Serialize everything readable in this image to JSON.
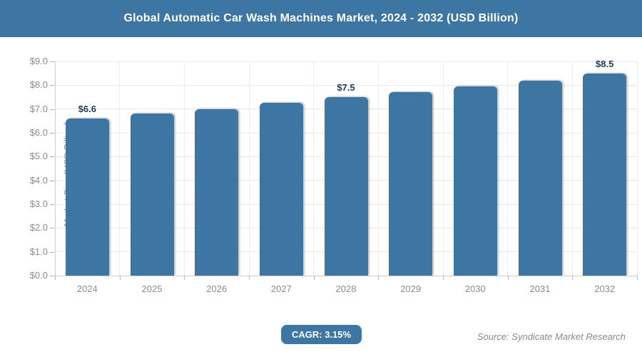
{
  "header": {
    "title": "Global Automatic Car Wash Machines Market, 2024 - 2032 (USD Billion)"
  },
  "chart_data": {
    "type": "bar",
    "title": "Global Automatic Car Wash Machines Market, 2024 - 2032 (USD Billion)",
    "categories": [
      "2024",
      "2025",
      "2026",
      "2027",
      "2028",
      "2029",
      "2030",
      "2031",
      "2032"
    ],
    "values": [
      6.6,
      6.8,
      7.0,
      7.25,
      7.5,
      7.7,
      7.95,
      8.2,
      8.5
    ],
    "bar_labels": [
      "$6.6",
      "",
      "",
      "",
      "$7.5",
      "",
      "",
      "",
      "$8.5"
    ],
    "xlabel": "",
    "ylabel": "Market Size (USD Billion)",
    "ylim": [
      0,
      9
    ],
    "ytick_step": 1,
    "ytick_labels": [
      "$0.0",
      "$1.0",
      "$2.0",
      "$3.0",
      "$4.0",
      "$5.0",
      "$6.0",
      "$7.0",
      "$8.0",
      "$9.0"
    ],
    "grid": true,
    "legend": false,
    "bar_color": "#3e76a3"
  },
  "footer": {
    "cagr_label": "CAGR: 3.15%",
    "source": "Source: Syndicate Market Research"
  },
  "colors": {
    "accent_blue": "#3e76a3",
    "grid": "#e9e9e9",
    "axis": "#cccccc",
    "axis_text": "#8c8c8c",
    "bar_label_text": "#1e3c59",
    "source_text": "#7f8d98"
  }
}
